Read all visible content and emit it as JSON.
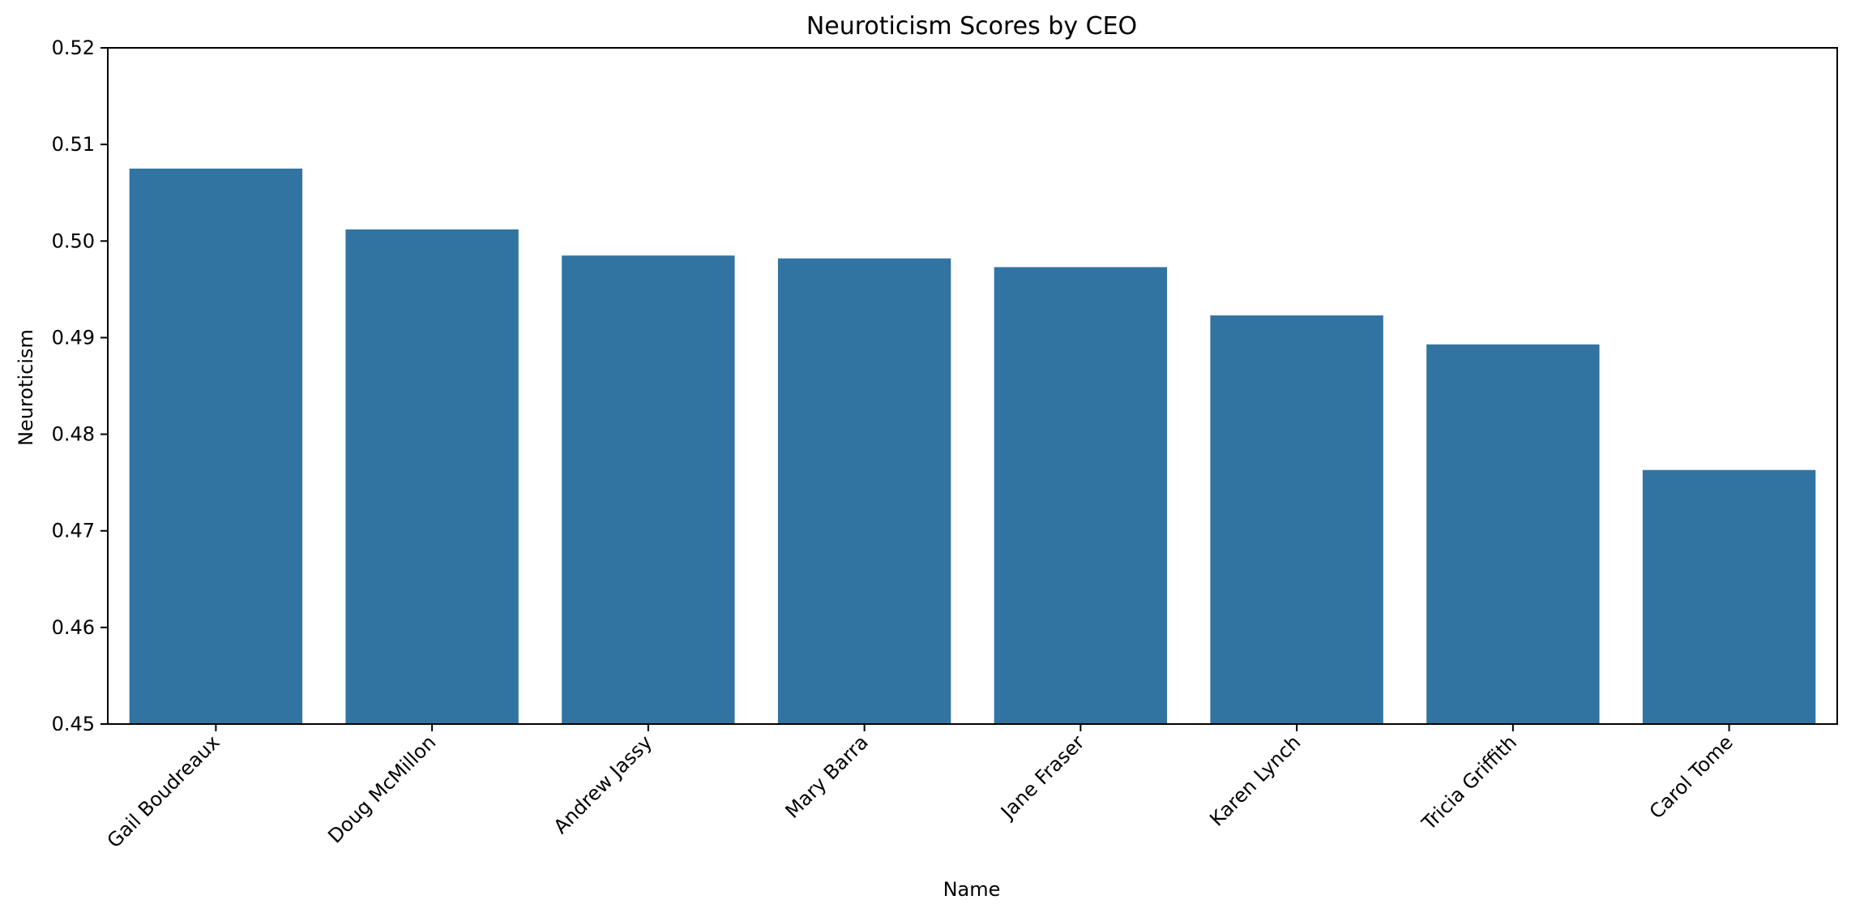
{
  "chart_data": {
    "type": "bar",
    "title": "Neuroticism Scores by CEO",
    "xlabel": "Name",
    "ylabel": "Neuroticism",
    "categories": [
      "Gail Boudreaux",
      "Doug McMillon",
      "Andrew Jassy",
      "Mary Barra",
      "Jane Fraser",
      "Karen Lynch",
      "Tricia Griffith",
      "Carol Tome"
    ],
    "values": [
      0.5075,
      0.5012,
      0.4985,
      0.4982,
      0.4973,
      0.4923,
      0.4893,
      0.4763
    ],
    "ylim": [
      0.45,
      0.52
    ],
    "yticks": [
      "0.45",
      "0.46",
      "0.47",
      "0.48",
      "0.49",
      "0.50",
      "0.51",
      "0.52"
    ],
    "grid": false,
    "bar_color": "#3274a1"
  }
}
